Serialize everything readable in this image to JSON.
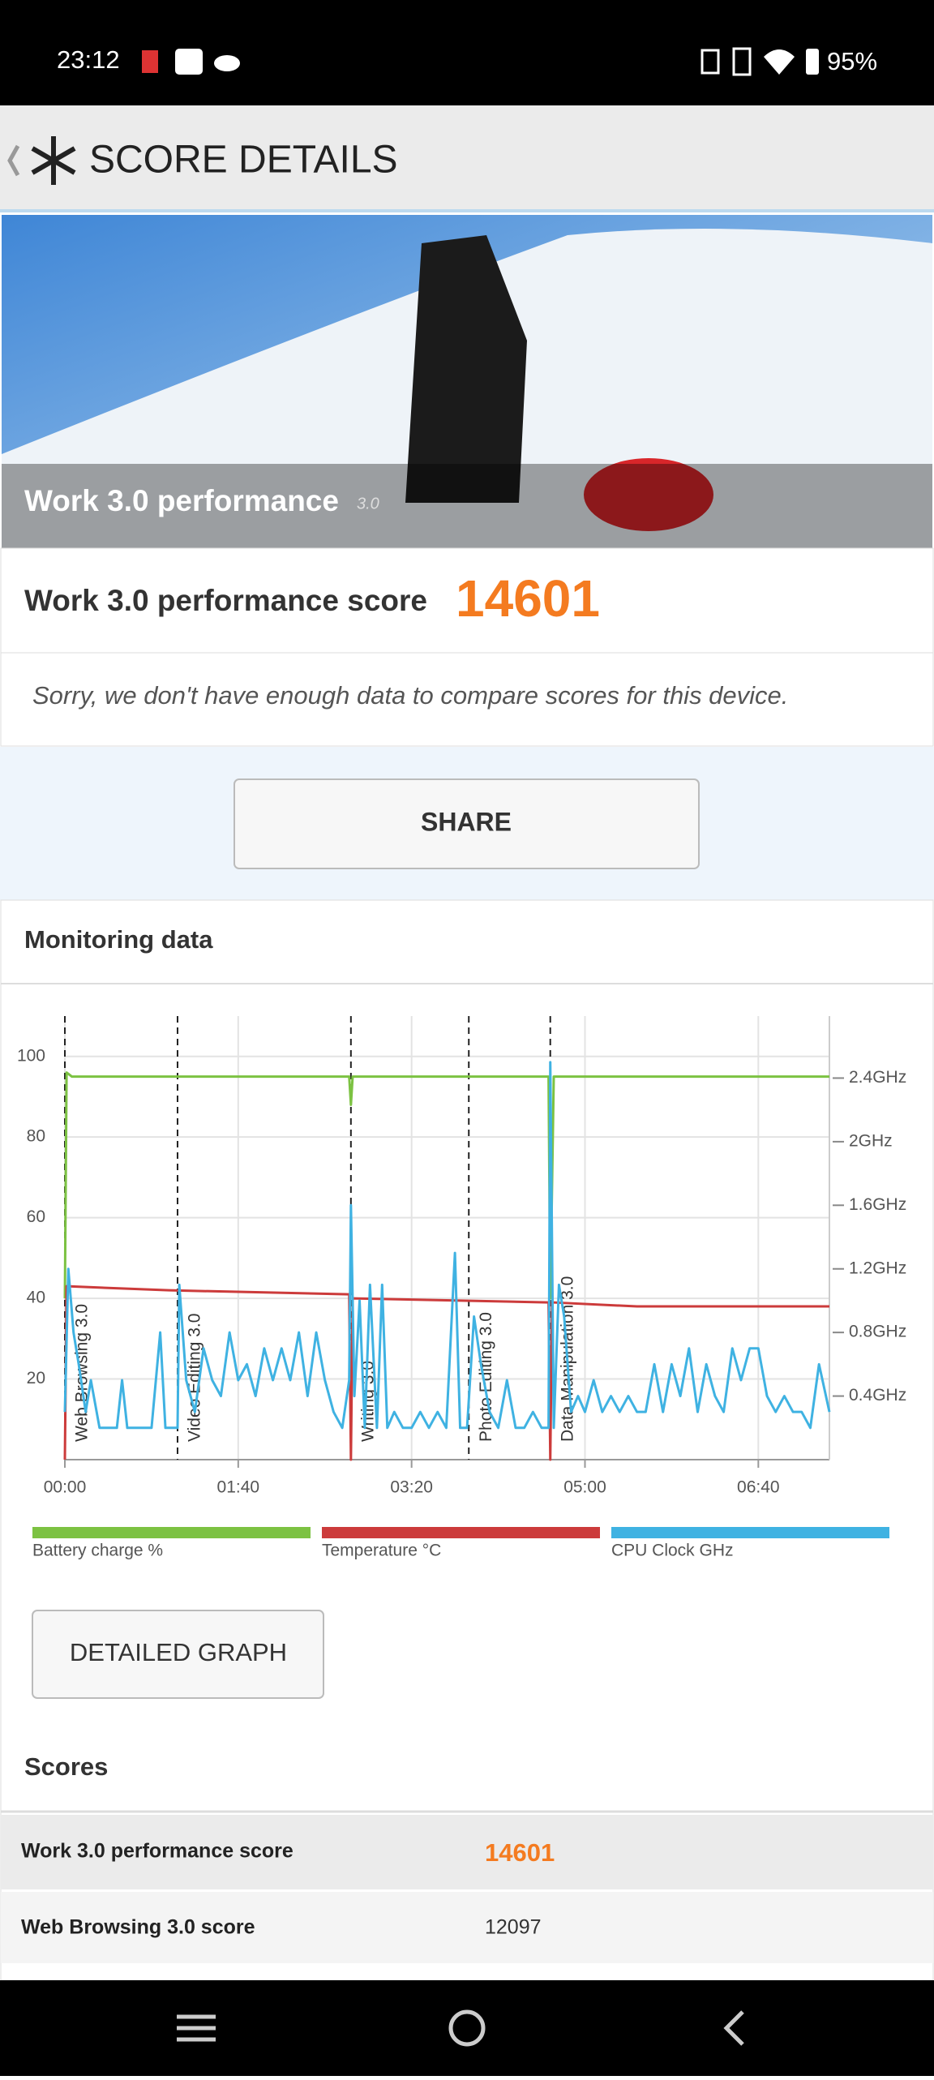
{
  "status_bar": {
    "time": "23:12",
    "battery": "95%"
  },
  "header": {
    "title": "SCORE DETAILS"
  },
  "hero": {
    "title": "Work 3.0 performance",
    "version": "3.0"
  },
  "score": {
    "label": "Work 3.0 performance score",
    "value": 14601
  },
  "message": "Sorry, we don't have enough data to compare scores for this device.",
  "share": "SHARE",
  "monitoring": {
    "title": "Monitoring data"
  },
  "chart_data": {
    "type": "line",
    "xlim": [
      0,
      441
    ],
    "ylim": [
      0,
      110
    ],
    "y2lim": [
      0,
      2.79
    ],
    "xticks": [
      {
        "value": 0,
        "label": "00:00"
      },
      {
        "value": 100,
        "label": "01:40"
      },
      {
        "value": 200,
        "label": "03:20"
      },
      {
        "value": 300,
        "label": "05:00"
      },
      {
        "value": 400,
        "label": "06:40"
      }
    ],
    "yticks": [
      20,
      40,
      60,
      80,
      100
    ],
    "y2ticks": [
      {
        "value": 0.4,
        "label": "0.4GHz"
      },
      {
        "value": 0.8,
        "label": "0.8GHz"
      },
      {
        "value": 1.2,
        "label": "1.2GHz"
      },
      {
        "value": 1.6,
        "label": "1.6GHz"
      },
      {
        "value": 2,
        "label": "2GHz"
      },
      {
        "value": 2.4,
        "label": "2.4GHz"
      }
    ],
    "grid": true,
    "markers": [
      {
        "x": 0,
        "label": "Web Browsing 3.0"
      },
      {
        "x": 65,
        "label": "Video Editing 3.0"
      },
      {
        "x": 165,
        "label": "Writing 3.0"
      },
      {
        "x": 233,
        "label": "Photo Editing 3.0"
      },
      {
        "x": 280,
        "label": "Data Manipulation 3.0"
      }
    ],
    "series": [
      {
        "name": "Battery charge %",
        "color": "#7cc242",
        "x": [
          0,
          1,
          4,
          164,
          165,
          166,
          279,
          280,
          282,
          441
        ],
        "values": [
          40,
          96,
          95,
          95,
          88,
          95,
          95,
          40,
          95,
          95
        ]
      },
      {
        "name": "Temperature °C",
        "color": "#cc3b3b",
        "x": [
          0,
          1,
          60,
          164,
          165,
          166,
          279,
          280,
          281,
          330,
          441
        ],
        "values": [
          0,
          43,
          42,
          41,
          0,
          40,
          39,
          0,
          39,
          38,
          38
        ]
      },
      {
        "name": "CPU Clock GHz",
        "color": "#3fb2e2",
        "axis": "y2",
        "x": [
          0,
          2,
          5,
          8,
          12,
          15,
          20,
          25,
          30,
          33,
          36,
          40,
          45,
          50,
          55,
          58,
          62,
          65,
          66,
          70,
          75,
          80,
          85,
          90,
          95,
          100,
          105,
          110,
          115,
          120,
          125,
          130,
          135,
          140,
          145,
          150,
          155,
          160,
          164,
          165,
          167,
          170,
          173,
          176,
          180,
          183,
          186,
          190,
          195,
          200,
          205,
          210,
          215,
          220,
          225,
          228,
          232,
          236,
          240,
          245,
          250,
          255,
          260,
          265,
          270,
          275,
          279,
          280,
          282,
          285,
          288,
          292,
          296,
          300,
          305,
          310,
          315,
          320,
          325,
          330,
          335,
          340,
          345,
          350,
          355,
          360,
          365,
          370,
          375,
          380,
          385,
          390,
          395,
          400,
          405,
          410,
          415,
          420,
          425,
          430,
          435,
          441
        ],
        "values": [
          0.3,
          1.2,
          0.8,
          0.6,
          0.3,
          0.5,
          0.2,
          0.2,
          0.2,
          0.5,
          0.2,
          0.2,
          0.2,
          0.2,
          0.8,
          0.2,
          0.2,
          0.2,
          1.1,
          0.5,
          0.3,
          0.7,
          0.5,
          0.4,
          0.8,
          0.5,
          0.6,
          0.4,
          0.7,
          0.5,
          0.7,
          0.5,
          0.8,
          0.4,
          0.8,
          0.5,
          0.3,
          0.2,
          0.5,
          1.6,
          0.4,
          1.0,
          0.2,
          1.1,
          0.2,
          1.1,
          0.2,
          0.3,
          0.2,
          0.2,
          0.3,
          0.2,
          0.3,
          0.2,
          1.3,
          0.2,
          0.2,
          0.9,
          0.6,
          0.3,
          0.2,
          0.5,
          0.2,
          0.2,
          0.3,
          0.2,
          0.2,
          2.5,
          0.2,
          1.1,
          0.9,
          0.3,
          0.4,
          0.3,
          0.5,
          0.3,
          0.4,
          0.3,
          0.4,
          0.3,
          0.3,
          0.6,
          0.3,
          0.6,
          0.4,
          0.7,
          0.3,
          0.6,
          0.4,
          0.3,
          0.7,
          0.5,
          0.7,
          0.7,
          0.4,
          0.3,
          0.4,
          0.3,
          0.3,
          0.2,
          0.6,
          0.3
        ]
      }
    ]
  },
  "detailed_graph": "DETAILED GRAPH",
  "scores": {
    "title": "Scores",
    "rows": [
      [
        "Work 3.0 performance score",
        14601
      ],
      [
        "Web Browsing 3.0 score",
        12097
      ]
    ]
  }
}
